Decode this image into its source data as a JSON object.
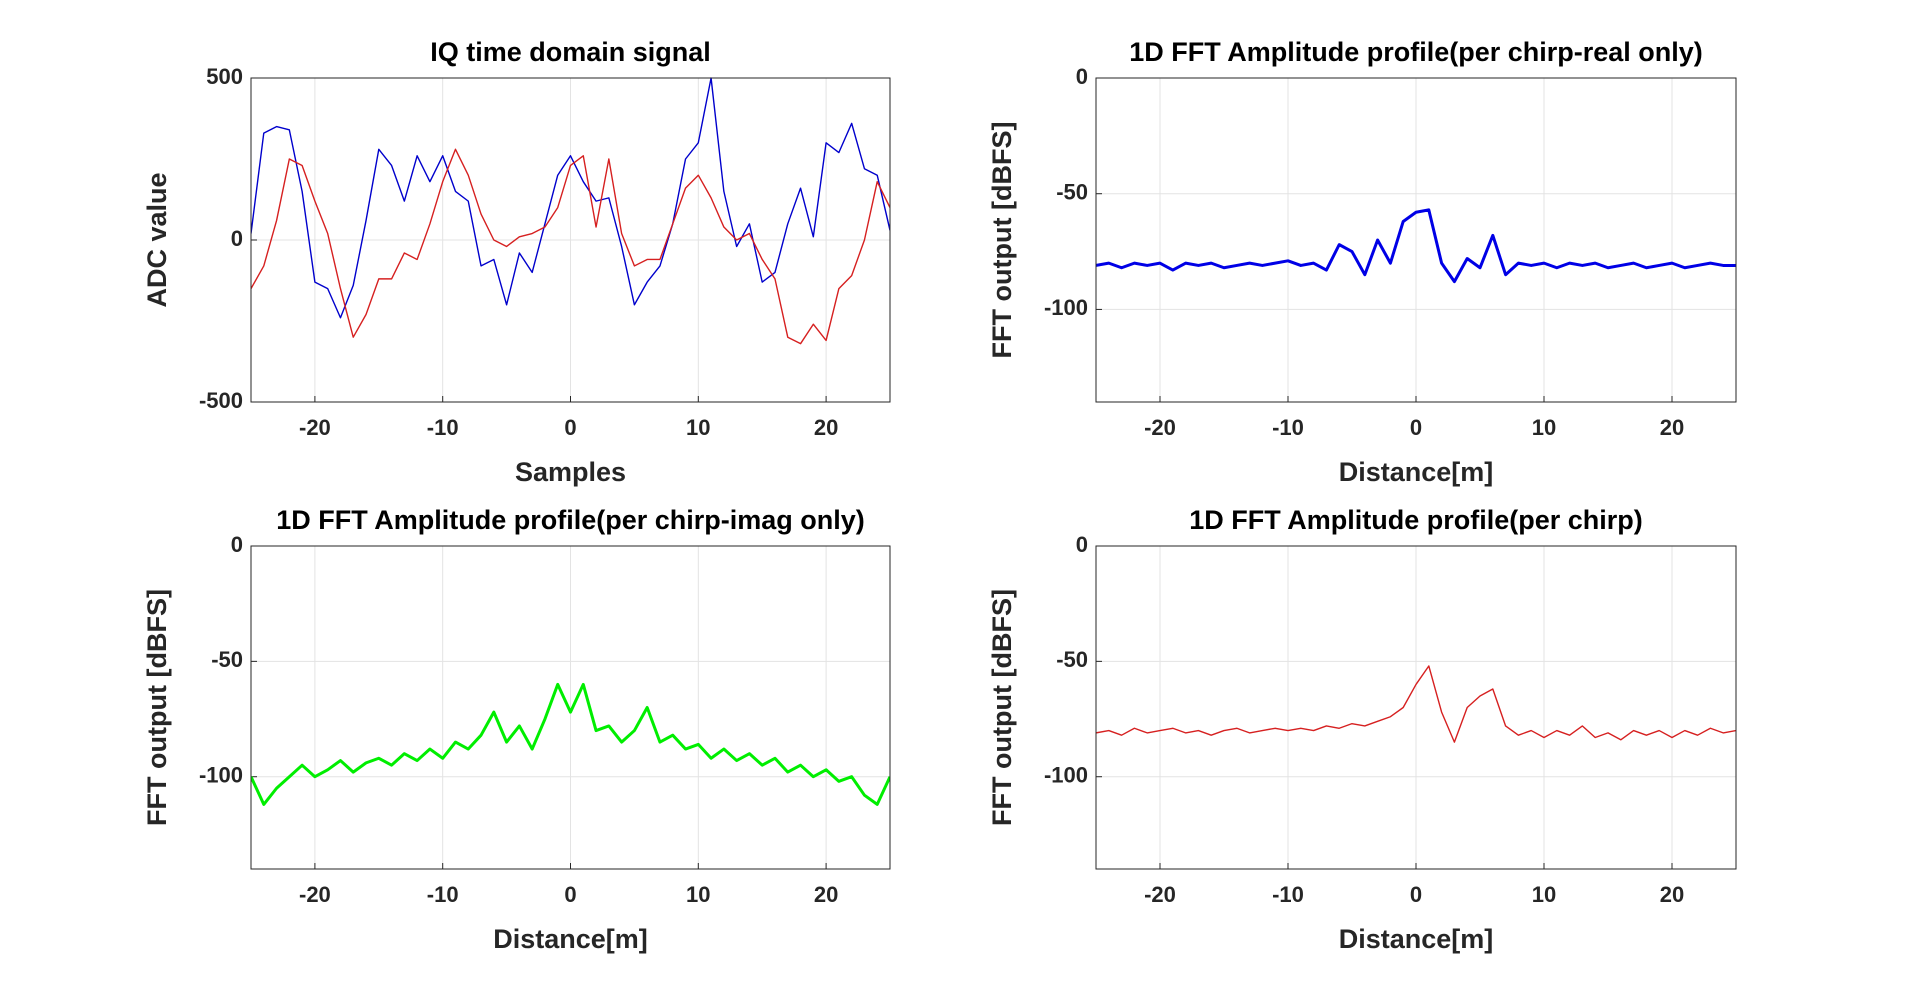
{
  "chart_data": [
    {
      "type": "line",
      "title": "IQ time domain signal",
      "x_label": "Samples",
      "y_label": "ADC value",
      "x": [
        -25,
        -24,
        -23,
        -22,
        -21,
        -20,
        -19,
        -18,
        -17,
        -16,
        -15,
        -14,
        -13,
        -12,
        -11,
        -10,
        -9,
        -8,
        -7,
        -6,
        -5,
        -4,
        -3,
        -2,
        -1,
        0,
        1,
        2,
        3,
        4,
        5,
        6,
        7,
        8,
        9,
        10,
        11,
        12,
        13,
        14,
        15,
        16,
        17,
        18,
        19,
        20,
        21,
        22,
        23,
        24,
        25
      ],
      "series": [
        {
          "color": "#0000cc",
          "values": [
            20,
            330,
            350,
            340,
            150,
            -130,
            -150,
            -240,
            -140,
            60,
            280,
            230,
            120,
            260,
            180,
            260,
            150,
            120,
            -80,
            -60,
            -200,
            -40,
            -100,
            50,
            200,
            260,
            180,
            120,
            130,
            -20,
            -200,
            -130,
            -80,
            50,
            250,
            300,
            500,
            150,
            -20,
            50,
            -130,
            -100,
            50,
            160,
            10,
            300,
            270,
            360,
            220,
            200,
            30
          ]
        },
        {
          "color": "#d62020",
          "values": [
            -150,
            -80,
            60,
            250,
            230,
            120,
            20,
            -150,
            -300,
            -230,
            -120,
            -120,
            -40,
            -60,
            50,
            180,
            280,
            200,
            80,
            0,
            -20,
            10,
            20,
            40,
            100,
            230,
            260,
            40,
            250,
            20,
            -80,
            -60,
            -60,
            50,
            160,
            200,
            130,
            40,
            0,
            20,
            -60,
            -120,
            -300,
            -320,
            -260,
            -310,
            -150,
            -110,
            0,
            180,
            100
          ]
        }
      ],
      "xlim": [
        -25,
        25
      ],
      "xticks": [
        -20,
        -10,
        0,
        10,
        20
      ],
      "ylim": [
        -500,
        500
      ],
      "yticks": [
        -500,
        0,
        500
      ],
      "grid": true
    },
    {
      "type": "line",
      "title": "1D FFT Amplitude profile(per chirp-real only)",
      "x_label": "Distance[m]",
      "y_label": "FFT output [dBFS]",
      "x": [
        -25,
        -24,
        -23,
        -22,
        -21,
        -20,
        -19,
        -18,
        -17,
        -16,
        -15,
        -14,
        -13,
        -12,
        -11,
        -10,
        -9,
        -8,
        -7,
        -6,
        -5,
        -4,
        -3,
        -2,
        -1,
        0,
        1,
        2,
        3,
        4,
        5,
        6,
        7,
        8,
        9,
        10,
        11,
        12,
        13,
        14,
        15,
        16,
        17,
        18,
        19,
        20,
        21,
        22,
        23,
        24,
        25
      ],
      "series": [
        {
          "color": "#0000e6",
          "values": [
            -81,
            -80,
            -82,
            -80,
            -81,
            -80,
            -83,
            -80,
            -81,
            -80,
            -82,
            -81,
            -80,
            -81,
            -80,
            -79,
            -81,
            -80,
            -83,
            -72,
            -75,
            -85,
            -70,
            -80,
            -62,
            -58,
            -57,
            -80,
            -88,
            -78,
            -82,
            -68,
            -85,
            -80,
            -81,
            -80,
            -82,
            -80,
            -81,
            -80,
            -82,
            -81,
            -80,
            -82,
            -81,
            -80,
            -82,
            -81,
            -80,
            -81,
            -81
          ]
        }
      ],
      "xlim": [
        -25,
        25
      ],
      "xticks": [
        -20,
        -10,
        0,
        10,
        20
      ],
      "ylim": [
        -140,
        0
      ],
      "yticks": [
        -100,
        -50,
        0
      ],
      "grid": true
    },
    {
      "type": "line",
      "title": "1D FFT Amplitude profile(per chirp-imag only)",
      "x_label": "Distance[m]",
      "y_label": "FFT output [dBFS]",
      "x": [
        -25,
        -24,
        -23,
        -22,
        -21,
        -20,
        -19,
        -18,
        -17,
        -16,
        -15,
        -14,
        -13,
        -12,
        -11,
        -10,
        -9,
        -8,
        -7,
        -6,
        -5,
        -4,
        -3,
        -2,
        -1,
        0,
        1,
        2,
        3,
        4,
        5,
        6,
        7,
        8,
        9,
        10,
        11,
        12,
        13,
        14,
        15,
        16,
        17,
        18,
        19,
        20,
        21,
        22,
        23,
        24,
        25
      ],
      "series": [
        {
          "color": "#00ee00",
          "values": [
            -100,
            -112,
            -105,
            -100,
            -95,
            -100,
            -97,
            -93,
            -98,
            -94,
            -92,
            -95,
            -90,
            -93,
            -88,
            -92,
            -85,
            -88,
            -82,
            -72,
            -85,
            -78,
            -88,
            -75,
            -60,
            -72,
            -60,
            -80,
            -78,
            -85,
            -80,
            -70,
            -85,
            -82,
            -88,
            -86,
            -92,
            -88,
            -93,
            -90,
            -95,
            -92,
            -98,
            -95,
            -100,
            -97,
            -102,
            -100,
            -108,
            -112,
            -100
          ]
        }
      ],
      "xlim": [
        -25,
        25
      ],
      "xticks": [
        -20,
        -10,
        0,
        10,
        20
      ],
      "ylim": [
        -140,
        0
      ],
      "yticks": [
        -100,
        -50,
        0
      ],
      "grid": true
    },
    {
      "type": "line",
      "title": "1D FFT Amplitude profile(per chirp)",
      "x_label": "Distance[m]",
      "y_label": "FFT output [dBFS]",
      "x": [
        -25,
        -24,
        -23,
        -22,
        -21,
        -20,
        -19,
        -18,
        -17,
        -16,
        -15,
        -14,
        -13,
        -12,
        -11,
        -10,
        -9,
        -8,
        -7,
        -6,
        -5,
        -4,
        -3,
        -2,
        -1,
        0,
        1,
        2,
        3,
        4,
        5,
        6,
        7,
        8,
        9,
        10,
        11,
        12,
        13,
        14,
        15,
        16,
        17,
        18,
        19,
        20,
        21,
        22,
        23,
        24,
        25
      ],
      "series": [
        {
          "color": "#d62020",
          "values": [
            -81,
            -80,
            -82,
            -79,
            -81,
            -80,
            -79,
            -81,
            -80,
            -82,
            -80,
            -79,
            -81,
            -80,
            -79,
            -80,
            -79,
            -80,
            -78,
            -79,
            -77,
            -78,
            -76,
            -74,
            -70,
            -60,
            -52,
            -72,
            -85,
            -70,
            -65,
            -62,
            -78,
            -82,
            -80,
            -83,
            -80,
            -82,
            -78,
            -83,
            -81,
            -84,
            -80,
            -82,
            -80,
            -83,
            -80,
            -82,
            -79,
            -81,
            -80
          ]
        }
      ],
      "xlim": [
        -25,
        25
      ],
      "xticks": [
        -20,
        -10,
        0,
        10,
        20
      ],
      "ylim": [
        -140,
        0
      ],
      "yticks": [
        -100,
        -50,
        0
      ],
      "grid": true
    }
  ]
}
